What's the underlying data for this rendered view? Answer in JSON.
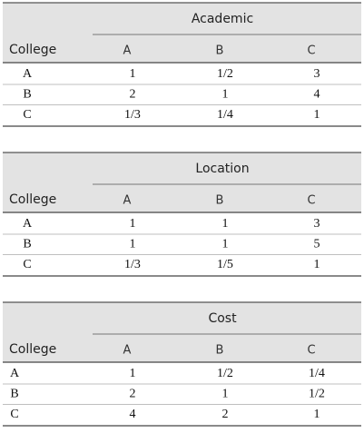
{
  "tables": [
    {
      "title": "Academic",
      "corner": "College",
      "columns": [
        "A",
        "B",
        "C"
      ],
      "rows": [
        [
          "A",
          "1",
          "1/2",
          "3"
        ],
        [
          "B",
          "2",
          "1",
          "4"
        ],
        [
          "C",
          "1/3",
          "1/4",
          "1"
        ]
      ]
    },
    {
      "title": "Location",
      "corner": "College",
      "columns": [
        "A",
        "B",
        "C"
      ],
      "rows": [
        [
          "A",
          "1",
          "1",
          "3"
        ],
        [
          "B",
          "1",
          "1",
          "5"
        ],
        [
          "C",
          "1/3",
          "1/5",
          "1"
        ]
      ]
    },
    {
      "title": "Cost",
      "corner": "College",
      "columns": [
        "A",
        "B",
        "C"
      ],
      "rows": [
        [
          "A",
          "1",
          "1/2",
          "1/4"
        ],
        [
          "B",
          "2",
          "1",
          "1/2"
        ],
        [
          "C",
          "4",
          "2",
          "1"
        ]
      ]
    }
  ]
}
